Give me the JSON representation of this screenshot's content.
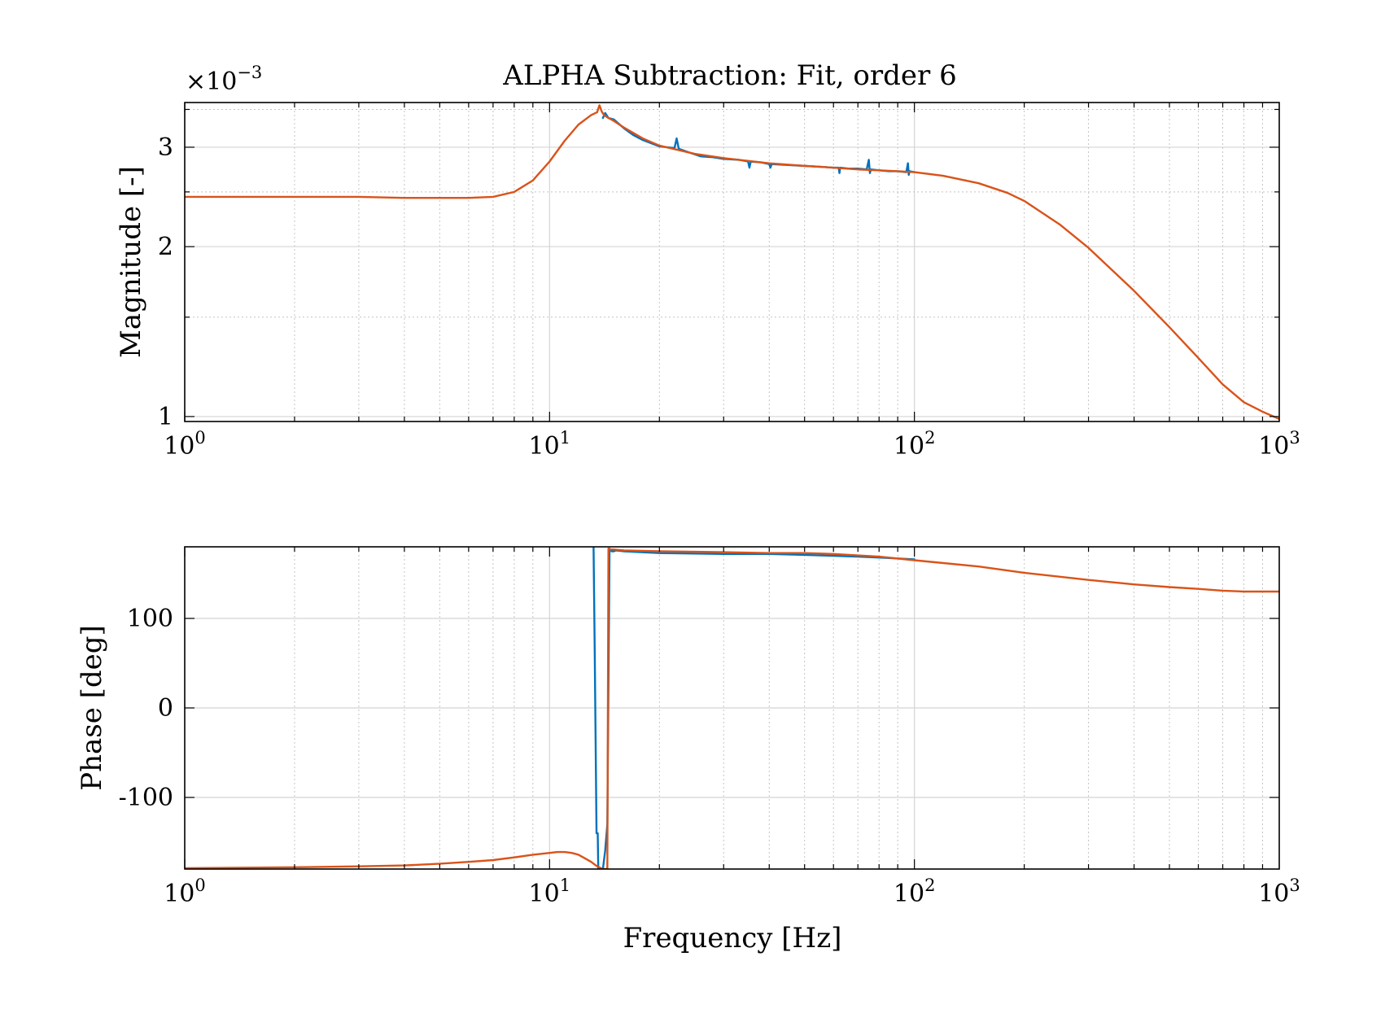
{
  "title": "ALPHA Subtraction: Fit, order 6",
  "colors": {
    "measured": "#0072BD",
    "fit": "#D95319",
    "grid_major": "#d4d4d4",
    "grid_minor": "#c4c4c4"
  },
  "chart_data": [
    {
      "type": "line",
      "panel": "magnitude",
      "title": "ALPHA Subtraction: Fit, order 6",
      "xlabel": "",
      "ylabel": "Magnitude [-]",
      "xscale": "log",
      "yscale": "log",
      "xlim": [
        1,
        1000
      ],
      "ylim": [
        0.00098,
        0.0036
      ],
      "y_multiplier_label": "×10",
      "y_multiplier_exponent": "−3",
      "xticks": [
        1,
        10,
        100,
        1000
      ],
      "xtick_labels": [
        {
          "base": "10",
          "exp": "0"
        },
        {
          "base": "10",
          "exp": "1"
        },
        {
          "base": "10",
          "exp": "2"
        },
        {
          "base": "10",
          "exp": "3"
        }
      ],
      "yticks": [
        0.001,
        0.002,
        0.003
      ],
      "ytick_labels": [
        "1",
        "2",
        "3"
      ],
      "grid": true,
      "series": [
        {
          "color": "#0072BD",
          "x": [
            14,
            14.2,
            14.5,
            15,
            16,
            17,
            18,
            20,
            22,
            22.3,
            22.6,
            24,
            26,
            28,
            30,
            33,
            35,
            35.3,
            35.6,
            38,
            40,
            40.3,
            40.6,
            45,
            50,
            55,
            60,
            62,
            62.3,
            62.6,
            66,
            70,
            74,
            75,
            75.5,
            76,
            80,
            85,
            90,
            95,
            96,
            96.5,
            97,
            100
          ],
          "y": [
            0.00338,
            0.00345,
            0.00338,
            0.00336,
            0.00324,
            0.00315,
            0.00309,
            0.00301,
            0.00299,
            0.00311,
            0.00298,
            0.00294,
            0.00289,
            0.00288,
            0.00286,
            0.00285,
            0.00283,
            0.00276,
            0.00283,
            0.00282,
            0.0028,
            0.00276,
            0.0028,
            0.00279,
            0.00278,
            0.00277,
            0.00276,
            0.00276,
            0.0027,
            0.00276,
            0.00275,
            0.00275,
            0.00274,
            0.00285,
            0.0027,
            0.00274,
            0.00273,
            0.00272,
            0.00272,
            0.00271,
            0.00281,
            0.00268,
            0.00272,
            0.00271
          ]
        },
        {
          "color": "#D95319",
          "x": [
            1,
            2,
            3,
            4,
            5,
            6,
            7,
            8,
            9,
            10,
            11,
            12,
            13,
            13.5,
            13.7,
            13.9,
            14.1,
            14.5,
            15,
            16,
            18,
            20,
            25,
            30,
            40,
            50,
            60,
            70,
            80,
            90,
            100,
            120,
            150,
            180,
            200,
            250,
            300,
            400,
            500,
            600,
            700,
            800,
            900,
            1000
          ],
          "y": [
            0.00245,
            0.00245,
            0.00245,
            0.00244,
            0.00244,
            0.00244,
            0.00245,
            0.0025,
            0.00262,
            0.00283,
            0.00308,
            0.00329,
            0.00342,
            0.00346,
            0.00356,
            0.00347,
            0.00342,
            0.00338,
            0.00334,
            0.00325,
            0.00311,
            0.00302,
            0.00292,
            0.00287,
            0.00281,
            0.00278,
            0.00276,
            0.00274,
            0.00273,
            0.00272,
            0.00271,
            0.00267,
            0.00259,
            0.00249,
            0.00241,
            0.00219,
            0.00199,
            0.00167,
            0.00144,
            0.00127,
            0.00114,
            0.00106,
            0.00102,
            0.00099
          ]
        }
      ]
    },
    {
      "type": "line",
      "panel": "phase",
      "xlabel": "Frequency [Hz]",
      "ylabel": "Phase [deg]",
      "xscale": "log",
      "yscale": "linear",
      "xlim": [
        1,
        1000
      ],
      "ylim": [
        -180,
        180
      ],
      "xticks": [
        1,
        10,
        100,
        1000
      ],
      "xtick_labels": [
        {
          "base": "10",
          "exp": "0"
        },
        {
          "base": "10",
          "exp": "1"
        },
        {
          "base": "10",
          "exp": "2"
        },
        {
          "base": "10",
          "exp": "3"
        }
      ],
      "yticks": [
        -100,
        0,
        100
      ],
      "ytick_labels": [
        "-100",
        "0",
        "100"
      ],
      "grid": true,
      "series": [
        {
          "color": "#0072BD",
          "x": [
            13.2,
            13.3,
            13.45,
            13.55,
            13.6,
            13.8,
            14,
            14.2,
            14.4,
            14.6,
            14.8,
            15,
            15.2,
            16,
            20,
            30,
            40,
            50,
            60,
            70,
            80,
            90,
            100
          ],
          "y": [
            180,
            60,
            -140,
            -140,
            -180,
            -180,
            -180,
            -160,
            -130,
            178,
            175,
            175,
            176,
            175,
            173,
            172,
            172,
            171,
            170,
            169,
            168,
            167,
            166
          ]
        },
        {
          "color": "#D95319",
          "x": [
            1,
            2,
            3,
            4,
            5,
            6,
            7,
            8,
            9,
            10,
            10.5,
            11,
            11.5,
            12,
            12.5,
            13,
            13.5,
            14,
            14.4,
            14.5,
            14.7,
            15,
            16,
            20,
            30,
            40,
            50,
            60,
            80,
            100,
            150,
            200,
            300,
            400,
            500,
            600,
            700,
            800,
            900,
            1000
          ],
          "y": [
            -179,
            -178,
            -177,
            -176,
            -174,
            -172,
            -170,
            -167,
            -164,
            -162,
            -161,
            -161,
            -162,
            -164,
            -168,
            -172,
            -177,
            -180,
            -180,
            178,
            177,
            177,
            176,
            175,
            174,
            173,
            173,
            172,
            169,
            165,
            158,
            151,
            143,
            138,
            135,
            133,
            131,
            130,
            130,
            130
          ]
        }
      ]
    }
  ]
}
